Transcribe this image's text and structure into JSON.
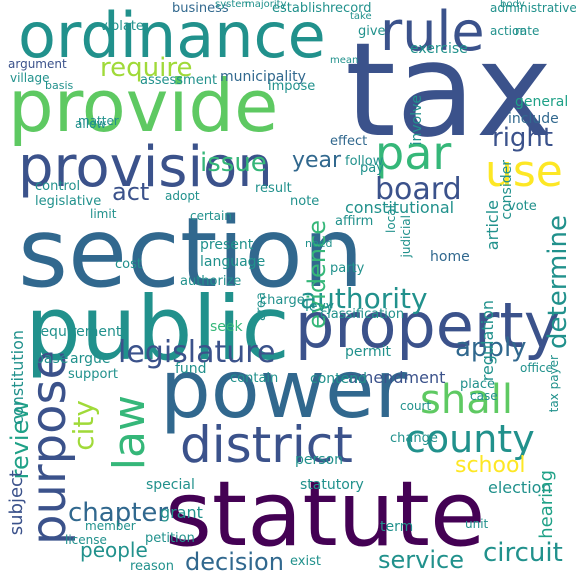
{
  "palette": {
    "dark_purple": "#440154",
    "indigo": "#3b528b",
    "blue": "#31688e",
    "teal": "#21918c",
    "teal_green": "#1fa187",
    "green": "#35b779",
    "light_green": "#5ec962",
    "lime": "#a0da39",
    "yellow": "#fde725"
  },
  "words": [
    "section",
    "tax",
    "statute",
    "public",
    "power",
    "provide",
    "ordinance",
    "property",
    "provision",
    "purpose",
    "district",
    "county",
    "shall",
    "rule",
    "par",
    "use",
    "law",
    "legislature",
    "authority",
    "city",
    "board",
    "require",
    "issue",
    "apply",
    "right",
    "determine",
    "decision",
    "circuit",
    "service",
    "people",
    "school",
    "year",
    "act",
    "evidence",
    "constitutional",
    "review",
    "amendment",
    "home",
    "chapter",
    "general",
    "exercise",
    "include",
    "municipality",
    "assessment",
    "establish",
    "record",
    "business",
    "violate",
    "argument",
    "village",
    "statutory",
    "person",
    "election",
    "hearing",
    "subject",
    "grant",
    "special",
    "regulation",
    "article",
    "consider",
    "involve",
    "impose",
    "effect",
    "follow",
    "contend",
    "levy",
    "fund",
    "seek",
    "limit",
    "language",
    "present",
    "cost",
    "need",
    "party",
    "charge",
    "permit",
    "local",
    "judicial",
    "constitution",
    "requirement",
    "base",
    "argue",
    "support",
    "contain",
    "classification",
    "area",
    "authorize",
    "control",
    "legislative",
    "adopt",
    "certain",
    "result",
    "vote",
    "affirm",
    "note",
    "pay",
    "give",
    "matter",
    "allow",
    "basis",
    "action",
    "rate",
    "administrative",
    "body",
    "majority",
    "system",
    "take",
    "mean",
    "tax payer",
    "office",
    "place",
    "change",
    "member",
    "license",
    "petition",
    "reason",
    "term",
    "exist",
    "unit",
    "case",
    "court"
  ]
}
